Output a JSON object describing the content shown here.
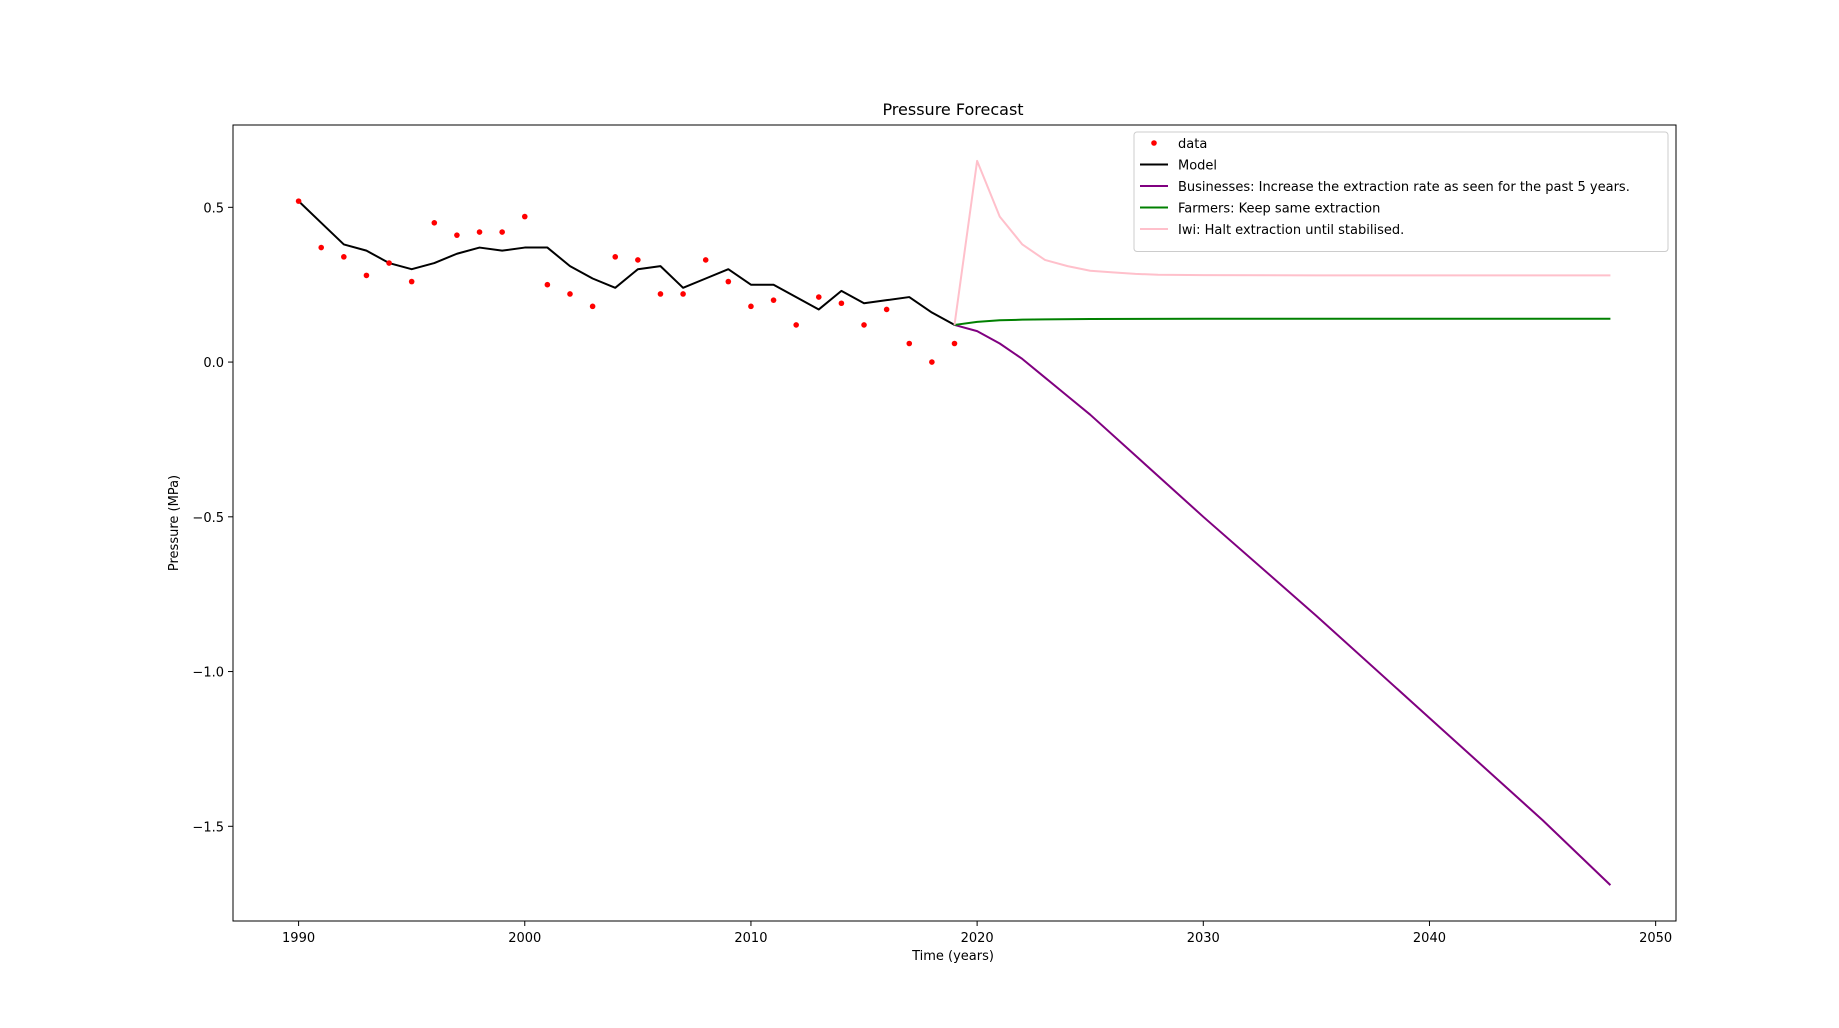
{
  "chart_data": {
    "type": "line",
    "title": "Pressure Forecast",
    "xlabel": "Time (years)",
    "ylabel": "Pressure (MPa)",
    "xlim": [
      1987.1,
      2050.9
    ],
    "ylim": [
      -1.806,
      0.766
    ],
    "xticks": [
      1990,
      2000,
      2010,
      2020,
      2030,
      2040,
      2050
    ],
    "yticks": [
      -1.5,
      -1.0,
      -0.5,
      0.0,
      0.5
    ],
    "ytick_labels": [
      "−1.5",
      "−1.0",
      "−0.5",
      "0.0",
      "0.5"
    ],
    "grid": false,
    "legend_position": "top-right",
    "series": [
      {
        "name": "data",
        "style": "points",
        "color": "#ff0000",
        "x": [
          1990,
          1991,
          1992,
          1993,
          1994,
          1995,
          1996,
          1997,
          1998,
          1999,
          2000,
          2001,
          2002,
          2003,
          2004,
          2005,
          2006,
          2007,
          2008,
          2009,
          2010,
          2011,
          2012,
          2013,
          2014,
          2015,
          2016,
          2017,
          2018,
          2019
        ],
        "y": [
          0.52,
          0.37,
          0.34,
          0.28,
          0.32,
          0.26,
          0.45,
          0.41,
          0.42,
          0.42,
          0.47,
          0.25,
          0.22,
          0.18,
          0.34,
          0.33,
          0.22,
          0.22,
          0.33,
          0.26,
          0.18,
          0.2,
          0.12,
          0.21,
          0.19,
          0.12,
          0.17,
          0.06,
          0.0,
          0.06
        ]
      },
      {
        "name": "Model",
        "style": "line",
        "color": "#000000",
        "x": [
          1990,
          1991,
          1992,
          1993,
          1994,
          1995,
          1996,
          1997,
          1998,
          1999,
          2000,
          2001,
          2002,
          2003,
          2004,
          2005,
          2006,
          2007,
          2008,
          2009,
          2010,
          2011,
          2012,
          2013,
          2014,
          2015,
          2016,
          2017,
          2018,
          2019
        ],
        "y": [
          0.52,
          0.45,
          0.38,
          0.36,
          0.32,
          0.3,
          0.32,
          0.35,
          0.37,
          0.36,
          0.37,
          0.37,
          0.31,
          0.27,
          0.24,
          0.3,
          0.31,
          0.24,
          0.27,
          0.3,
          0.25,
          0.25,
          0.21,
          0.17,
          0.23,
          0.19,
          0.2,
          0.21,
          0.16,
          0.12
        ]
      },
      {
        "name": "Businesses: Increase the extraction rate as seen for the past 5 years.",
        "style": "line",
        "color": "#800080",
        "x": [
          2019,
          2020,
          2021,
          2022,
          2023,
          2024,
          2025,
          2030,
          2035,
          2040,
          2045,
          2048
        ],
        "y": [
          0.12,
          0.1,
          0.06,
          0.01,
          -0.05,
          -0.11,
          -0.17,
          -0.5,
          -0.82,
          -1.15,
          -1.48,
          -1.69
        ]
      },
      {
        "name": "Farmers: Keep same extraction",
        "style": "line",
        "color": "#008000",
        "x": [
          2019,
          2020,
          2021,
          2022,
          2023,
          2025,
          2030,
          2040,
          2048
        ],
        "y": [
          0.12,
          0.13,
          0.135,
          0.137,
          0.138,
          0.139,
          0.14,
          0.14,
          0.14
        ]
      },
      {
        "name": "Iwi: Halt extraction until stabilised.",
        "style": "line",
        "color": "#ffc0cb",
        "x": [
          2019,
          2020,
          2021,
          2022,
          2023,
          2024,
          2025,
          2026,
          2027,
          2028,
          2030,
          2035,
          2040,
          2048
        ],
        "y": [
          0.12,
          0.65,
          0.47,
          0.38,
          0.33,
          0.31,
          0.295,
          0.29,
          0.285,
          0.282,
          0.281,
          0.28,
          0.28,
          0.28
        ]
      }
    ]
  }
}
